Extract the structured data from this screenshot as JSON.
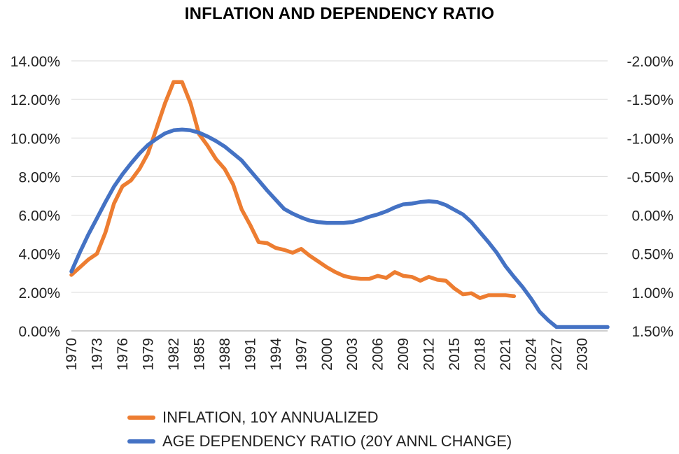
{
  "chart_data": {
    "type": "line",
    "title": "INFLATION AND DEPENDENCY RATIO",
    "left_axis": {
      "ticks": [
        "14.00%",
        "12.00%",
        "10.00%",
        "8.00%",
        "6.00%",
        "4.00%",
        "2.00%",
        "0.00%"
      ],
      "ylim": [
        0,
        14
      ]
    },
    "right_axis": {
      "ticks": [
        "-2.00%",
        "-1.50%",
        "-1.00%",
        "-0.50%",
        "0.00%",
        "0.50%",
        "1.00%",
        "1.50%"
      ],
      "ylim": [
        1.5,
        -2.0
      ],
      "reversed": true
    },
    "x_ticks": [
      "1970",
      "1973",
      "1976",
      "1979",
      "1982",
      "1985",
      "1988",
      "1991",
      "1994",
      "1997",
      "2000",
      "2003",
      "2006",
      "2009",
      "2012",
      "2015",
      "2018",
      "2021",
      "2024",
      "2027",
      "2030"
    ],
    "xlim": [
      1970,
      2033
    ],
    "grid": "horizontal",
    "legend_position": "bottom",
    "series": [
      {
        "name": "INFLATION, 10Y ANNUALIZED",
        "axis": "left",
        "color": "#ED7D31",
        "x": [
          1970,
          1971,
          1972,
          1973,
          1974,
          1975,
          1976,
          1977,
          1978,
          1979,
          1980,
          1981,
          1982,
          1983,
          1984,
          1985,
          1986,
          1987,
          1988,
          1989,
          1990,
          1991,
          1992,
          1993,
          1994,
          1995,
          1996,
          1997,
          1998,
          1999,
          2000,
          2001,
          2002,
          2003,
          2004,
          2005,
          2006,
          2007,
          2008,
          2009,
          2010,
          2011,
          2012,
          2013,
          2014,
          2015,
          2016,
          2017,
          2018,
          2019,
          2020,
          2021,
          2022
        ],
        "y": [
          2.9,
          3.3,
          3.7,
          4.0,
          5.1,
          6.6,
          7.5,
          7.8,
          8.4,
          9.2,
          10.5,
          11.8,
          12.9,
          12.9,
          11.8,
          10.2,
          9.6,
          8.9,
          8.4,
          7.6,
          6.3,
          5.5,
          4.6,
          4.55,
          4.3,
          4.2,
          4.05,
          4.25,
          3.9,
          3.6,
          3.3,
          3.05,
          2.85,
          2.75,
          2.7,
          2.7,
          2.85,
          2.75,
          3.05,
          2.85,
          2.8,
          2.6,
          2.8,
          2.65,
          2.6,
          2.2,
          1.9,
          1.95,
          1.7,
          1.85,
          1.85,
          1.85,
          1.8
        ]
      },
      {
        "name": "AGE DEPENDENCY RATIO (20Y ANNL CHANGE)",
        "axis": "right",
        "color": "#4472C4",
        "x": [
          1970,
          1971,
          1972,
          1973,
          1974,
          1975,
          1976,
          1977,
          1978,
          1979,
          1980,
          1981,
          1982,
          1983,
          1984,
          1985,
          1986,
          1987,
          1988,
          1989,
          1990,
          1991,
          1992,
          1993,
          1994,
          1995,
          1996,
          1997,
          1998,
          1999,
          2000,
          2001,
          2002,
          2003,
          2004,
          2005,
          2006,
          2007,
          2008,
          2009,
          2010,
          2011,
          2012,
          2013,
          2014,
          2015,
          2016,
          2017,
          2018,
          2019,
          2020,
          2021,
          2022,
          2023,
          2024,
          2025,
          2026,
          2027,
          2028,
          2029,
          2030,
          2031,
          2032,
          2033
        ],
        "y": [
          0.73,
          0.48,
          0.25,
          0.04,
          -0.17,
          -0.37,
          -0.53,
          -0.67,
          -0.8,
          -0.91,
          -0.99,
          -1.06,
          -1.1,
          -1.11,
          -1.1,
          -1.07,
          -1.02,
          -0.96,
          -0.89,
          -0.8,
          -0.71,
          -0.58,
          -0.45,
          -0.32,
          -0.2,
          -0.08,
          -0.02,
          0.03,
          0.07,
          0.09,
          0.1,
          0.1,
          0.1,
          0.09,
          0.06,
          0.02,
          -0.01,
          -0.05,
          -0.1,
          -0.14,
          -0.15,
          -0.17,
          -0.18,
          -0.17,
          -0.13,
          -0.07,
          -0.01,
          0.09,
          0.22,
          0.35,
          0.49,
          0.66,
          0.8,
          0.93,
          1.08,
          1.25,
          1.36,
          1.45,
          1.45,
          1.45,
          1.45,
          1.45,
          1.45,
          1.45
        ]
      }
    ]
  }
}
